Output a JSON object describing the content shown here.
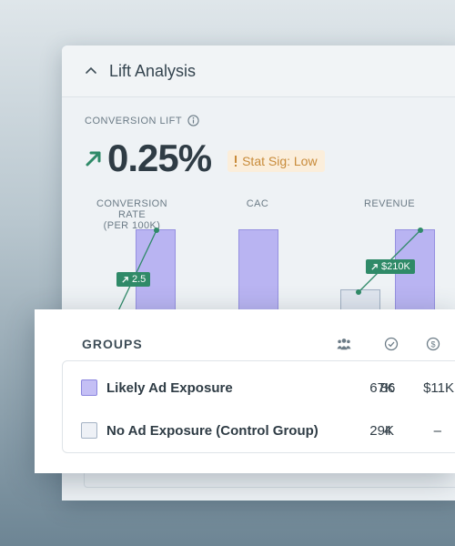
{
  "card": {
    "title": "Lift Analysis",
    "metric": {
      "label": "CONVERSION LIFT",
      "value": "0.25%",
      "badge": "Stat Sig: Low"
    },
    "columns": [
      {
        "label_line1": "CONVERSION RATE",
        "label_line2": "(PER 100K)",
        "pill": "2.5"
      },
      {
        "label_line1": "CAC",
        "label_line2": ""
      },
      {
        "label_line1": "REVENUE",
        "label_line2": "",
        "pill": "$210K"
      }
    ]
  },
  "groups": {
    "title": "GROUPS",
    "header_icons": [
      "people-icon",
      "check-circle-icon",
      "dollar-circle-icon"
    ],
    "rows": [
      {
        "label": "Likely Ad Exposure",
        "people": "67K",
        "conversions": "86",
        "revenue": "$11K",
        "swatch": "#c4bff5"
      },
      {
        "label": "No Ad Exposure (Control Group)",
        "people": "29K",
        "conversions": "4",
        "revenue": "–",
        "swatch": "#eef1f6"
      }
    ]
  },
  "colors": {
    "accent_green": "#2f8a68",
    "bar_purple": "#b9b4f2",
    "badge_bg": "#fbeedb",
    "badge_text": "#c88b3a"
  }
}
